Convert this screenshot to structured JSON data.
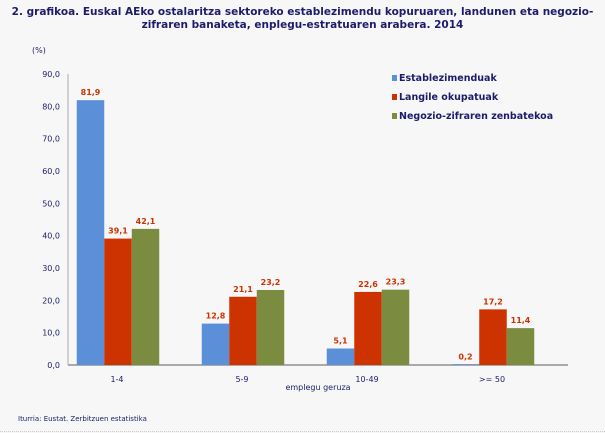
{
  "chart_data": {
    "type": "bar",
    "title": "2. grafikoa. Euskal AEko ostalaritza sektoreko establezimendu kopuruaren, landunen eta negozio-zifraren banaketa, enplegu-estratuaren arabera. 2014",
    "ylabel": "(%)",
    "xlabel": "emplegu geruza",
    "ylim": [
      0,
      90
    ],
    "yticks": [
      "0,0",
      "10,0",
      "20,0",
      "30,0",
      "40,0",
      "50,0",
      "60,0",
      "70,0",
      "80,0",
      "90,0"
    ],
    "categories": [
      "1-4",
      "5-9",
      "10-49",
      ">= 50"
    ],
    "series": [
      {
        "name": "Establezimenduak",
        "color": "#5b8fd8",
        "values": [
          81.9,
          12.8,
          5.1,
          0.2
        ],
        "labels": [
          "81,9",
          "12,8",
          "5,1",
          "0,2"
        ]
      },
      {
        "name": "Langile okupatuak",
        "color": "#cc3300",
        "values": [
          39.1,
          21.1,
          22.6,
          17.2
        ],
        "labels": [
          "39,1",
          "21,1",
          "22,6",
          "17,2"
        ]
      },
      {
        "name": "Negozio-zifraren zenbatekoa",
        "color": "#7b8c40",
        "values": [
          42.1,
          23.2,
          23.3,
          11.4
        ],
        "labels": [
          "42,1",
          "23,2",
          "23,3",
          "11,4"
        ]
      }
    ],
    "legend_position": "top-right",
    "grid": false
  },
  "source": "Iturria: Eustat. Zerbitzuen estatistika"
}
